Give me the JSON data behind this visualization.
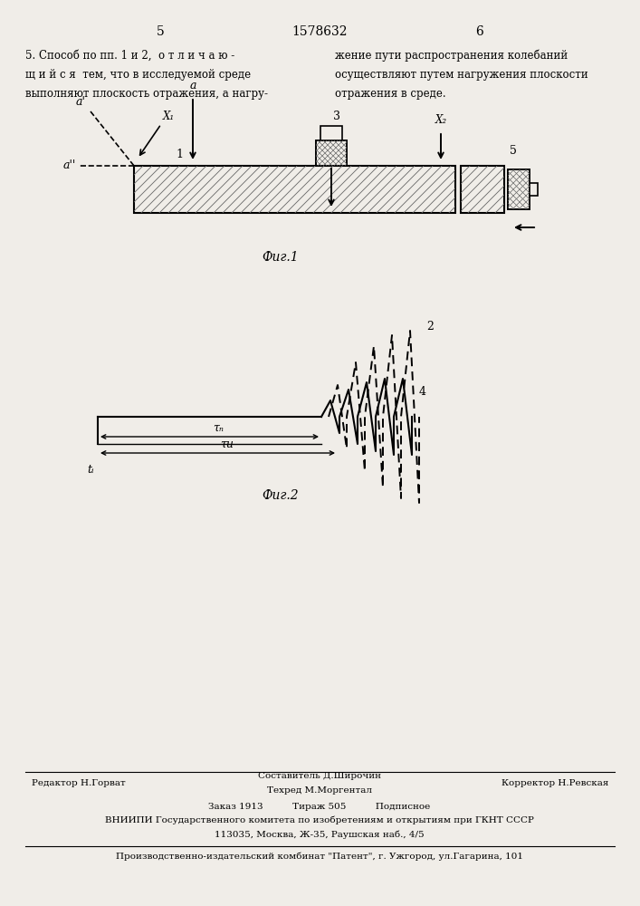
{
  "page_width": 7.07,
  "page_height": 10.0,
  "bg_color": "#f0ede8",
  "header_page_left": "5",
  "header_center": "1578632",
  "header_page_right": "6",
  "text_col1_lines": [
    "5. Способ по пп. 1 и 2,  о т л и ч а ю -",
    "щ и й с я  тем, что в исследуемой среде",
    "выполняют плоскость отражения, а нагру-"
  ],
  "text_col2_lines": [
    "жение пути распространения колебаний",
    "осуществляют путем нагружения плоскости",
    "отражения в среде."
  ],
  "fig1_caption": "Фиг.1",
  "fig2_caption": "Фиг.2",
  "footer_line1_left": "Редактор Н.Горват",
  "footer_line1_center_top": "Составитель Д.Широчин",
  "footer_line1_center": "Техред М.Моргентал",
  "footer_line1_right": "Корректор Н.Ревская",
  "footer_line2": "Заказ 1913          Тираж 505          Подписное",
  "footer_line3": "ВНИИПИ Государственного комитета по изобретениям и открытиям при ГКНТ СССР",
  "footer_line4": "113035, Москва, Ж-35, Раушская наб., 4/5",
  "footer_line5": "Производственно-издательский комбинат \"Патент\", г. Ужгород, ул.Гагарина, 101",
  "line_color": "#000000"
}
